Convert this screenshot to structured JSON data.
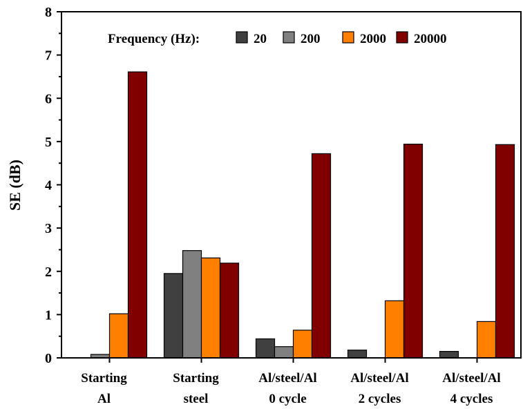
{
  "chart_data": {
    "type": "bar",
    "title": "",
    "xlabel": "",
    "ylabel": "SE (dB)",
    "ylim": [
      0,
      8
    ],
    "y_ticks": [
      "0",
      "1",
      "2",
      "3",
      "4",
      "5",
      "6",
      "7",
      "8"
    ],
    "categories": [
      [
        "Starting",
        "Al"
      ],
      [
        "Starting",
        "steel"
      ],
      [
        "Al/steel/Al",
        "0 cycle"
      ],
      [
        "Al/steel/Al",
        "2 cycles"
      ],
      [
        "Al/steel/Al",
        "4 cycles"
      ]
    ],
    "legend": {
      "title": "Frequency (Hz):",
      "placement": "top"
    },
    "grid": false,
    "series": [
      {
        "name": "20",
        "color": "#404040",
        "values": [
          0.0,
          1.95,
          0.44,
          0.18,
          0.15
        ]
      },
      {
        "name": "200",
        "color": "#808080",
        "values": [
          0.08,
          2.48,
          0.26,
          0.0,
          0.0
        ]
      },
      {
        "name": "2000",
        "color": "#ff8000",
        "values": [
          1.02,
          2.31,
          0.64,
          1.32,
          0.84
        ]
      },
      {
        "name": "20000",
        "color": "#800000",
        "values": [
          6.61,
          2.19,
          4.72,
          4.94,
          4.93
        ]
      }
    ]
  }
}
